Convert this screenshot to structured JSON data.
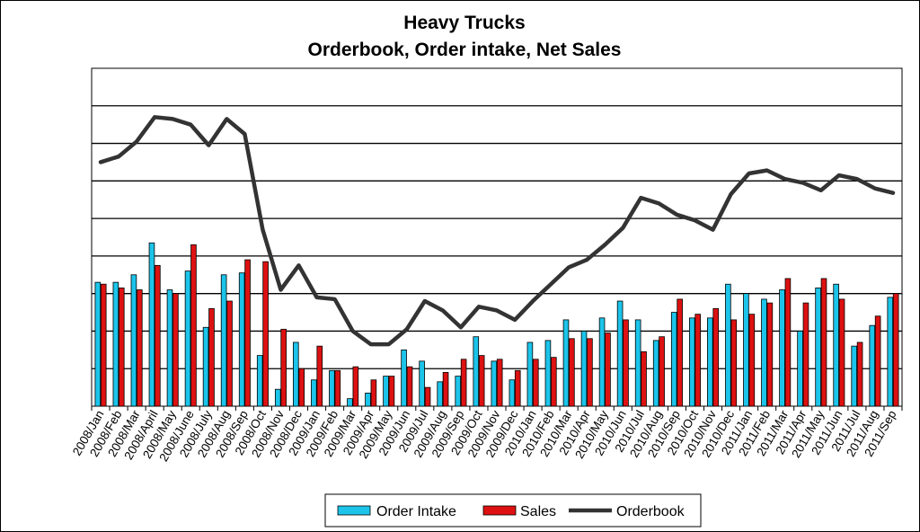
{
  "chart_data": {
    "type": "bar",
    "title": "Heavy Trucks",
    "subtitle": "Orderbook, Order intake, Net Sales",
    "xlabel": "",
    "ylabel": "",
    "y_tick_labels_shown": false,
    "grid": "horizontal",
    "gridline_count": 9,
    "legend_position": "bottom",
    "categories": [
      "2008/Jan",
      "2008/Feb",
      "2008/Mar",
      "2008/April",
      "2008/May",
      "2008/June",
      "2008/July",
      "2008/Aug",
      "2008/Sep",
      "2008/Oct",
      "2008/Nov",
      "2008/Dec",
      "2009/Jan",
      "2009/Feb",
      "2009/Mar",
      "2009/Apr",
      "2009/May",
      "2009/Jun",
      "2009/Jul",
      "2009/Aug",
      "2009/Sep",
      "2009/Oct",
      "2009/Nov",
      "2009/Dec",
      "2010/Jan",
      "2010/Feb",
      "2010/Mar",
      "2010/Apr",
      "2010/May",
      "2010/Jun",
      "2010/Jul",
      "2010/Aug",
      "2010/Sep",
      "2010/Oct",
      "2010/Nov",
      "2010/Dec",
      "2011/Jan",
      "2011/Feb",
      "2011/Mar",
      "2011/Apr",
      "2011/May",
      "2011/Jun",
      "2011/Jul",
      "2011/Aug",
      "2011/Sep"
    ],
    "ylim": [
      0,
      9
    ],
    "series": [
      {
        "name": "Order Intake",
        "type": "bar",
        "color": "#1cc4ea",
        "values": [
          3.3,
          3.3,
          3.5,
          4.35,
          3.1,
          3.6,
          2.1,
          3.5,
          3.55,
          1.35,
          0.45,
          1.7,
          0.7,
          0.95,
          0.2,
          0.35,
          0.8,
          1.5,
          1.2,
          0.65,
          0.8,
          1.85,
          1.2,
          0.7,
          1.7,
          1.75,
          2.3,
          2.0,
          2.35,
          2.8,
          2.3,
          1.75,
          2.5,
          2.35,
          2.35,
          3.25,
          3.0,
          2.85,
          3.1,
          2.0,
          3.15,
          3.25,
          1.6,
          2.15,
          2.9
        ]
      },
      {
        "name": "Sales",
        "type": "bar",
        "color": "#dd1111",
        "values": [
          3.25,
          3.15,
          3.1,
          3.75,
          3.0,
          4.3,
          2.6,
          2.8,
          3.9,
          3.85,
          2.05,
          1.0,
          1.6,
          0.95,
          1.05,
          0.7,
          0.8,
          1.05,
          0.5,
          0.9,
          1.25,
          1.35,
          1.25,
          0.95,
          1.25,
          1.3,
          1.8,
          1.8,
          1.95,
          2.3,
          1.45,
          1.85,
          2.85,
          2.45,
          2.6,
          2.3,
          2.45,
          2.75,
          3.4,
          2.75,
          3.4,
          2.85,
          1.7,
          2.4,
          3.0
        ]
      },
      {
        "name": "Orderbook",
        "type": "line",
        "color": "#333333",
        "values": [
          6.5,
          6.65,
          7.05,
          7.7,
          7.65,
          7.5,
          6.95,
          7.65,
          7.25,
          4.7,
          3.1,
          3.75,
          2.9,
          2.85,
          2.0,
          1.65,
          1.65,
          2.05,
          2.8,
          2.55,
          2.1,
          2.65,
          2.55,
          2.3,
          2.8,
          3.25,
          3.7,
          3.9,
          4.3,
          4.75,
          5.55,
          5.4,
          5.1,
          4.95,
          4.7,
          5.65,
          6.2,
          6.28,
          6.05,
          5.95,
          5.75,
          6.15,
          6.05,
          5.8,
          5.68
        ]
      }
    ]
  }
}
